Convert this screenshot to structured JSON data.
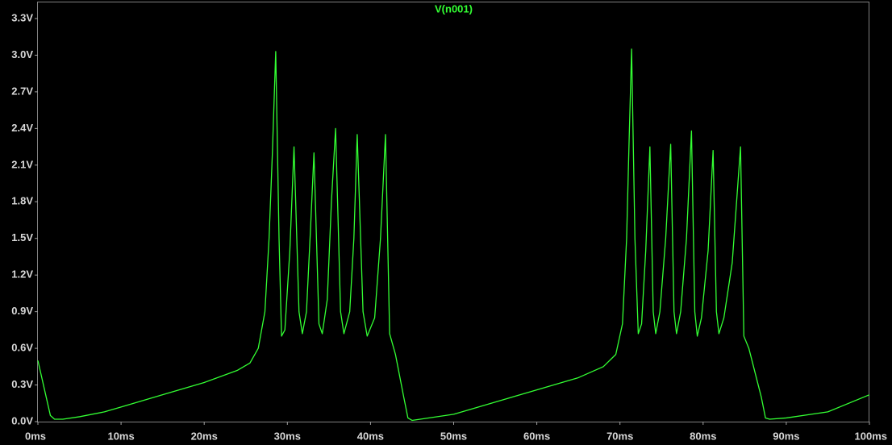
{
  "chart_data": {
    "type": "line",
    "series": [
      {
        "name": "V(n001)",
        "color": "#33ff33",
        "x": [
          0,
          1,
          1.5,
          2,
          3,
          5,
          8,
          10,
          15,
          20,
          24,
          25.5,
          26.5,
          27.3,
          27.8,
          28.2,
          28.6,
          29.0,
          29.3,
          29.7,
          30.3,
          30.8,
          31.4,
          31.8,
          32.3,
          32.8,
          33.2,
          33.8,
          34.2,
          34.8,
          35.3,
          35.8,
          36.4,
          36.8,
          37.5,
          38.0,
          38.4,
          39.1,
          39.6,
          40.5,
          41.2,
          41.8,
          42.3,
          43.0,
          44.0,
          44.5,
          45,
          50,
          55,
          60,
          65,
          68,
          69.5,
          70.3,
          70.8,
          71.1,
          71.4,
          71.8,
          72.2,
          72.6,
          73.1,
          73.6,
          74.0,
          74.3,
          74.8,
          75.5,
          76.1,
          76.5,
          76.8,
          77.3,
          78.0,
          78.6,
          79.0,
          79.3,
          79.8,
          80.6,
          81.2,
          81.6,
          81.9,
          82.5,
          83.5,
          84.5,
          84.9,
          85.5,
          87.0,
          87.5,
          88,
          90,
          95,
          100
        ],
        "values": [
          0.5,
          0.2,
          0.05,
          0.02,
          0.02,
          0.04,
          0.08,
          0.12,
          0.22,
          0.32,
          0.42,
          0.48,
          0.6,
          0.9,
          1.5,
          2.2,
          3.03,
          1.5,
          0.7,
          0.75,
          1.4,
          2.25,
          0.9,
          0.72,
          0.9,
          1.6,
          2.2,
          0.8,
          0.72,
          1.0,
          1.8,
          2.4,
          0.9,
          0.72,
          0.9,
          1.5,
          2.35,
          0.9,
          0.7,
          0.85,
          1.5,
          2.35,
          0.72,
          0.55,
          0.2,
          0.03,
          0.01,
          0.06,
          0.16,
          0.26,
          0.36,
          0.45,
          0.55,
          0.8,
          1.5,
          2.3,
          3.05,
          1.5,
          0.72,
          0.8,
          1.4,
          2.25,
          0.9,
          0.72,
          0.9,
          1.5,
          2.27,
          0.9,
          0.72,
          0.9,
          1.5,
          2.38,
          0.9,
          0.7,
          0.85,
          1.4,
          2.22,
          0.9,
          0.72,
          0.85,
          1.3,
          2.25,
          0.7,
          0.6,
          0.2,
          0.03,
          0.02,
          0.03,
          0.08,
          0.22
        ]
      }
    ],
    "xlim": [
      0,
      100
    ],
    "xticks": [
      {
        "value": 0,
        "label": "0ms"
      },
      {
        "value": 10,
        "label": "10ms"
      },
      {
        "value": 20,
        "label": "20ms"
      },
      {
        "value": 30,
        "label": "30ms"
      },
      {
        "value": 40,
        "label": "40ms"
      },
      {
        "value": 50,
        "label": "50ms"
      },
      {
        "value": 60,
        "label": "60ms"
      },
      {
        "value": 70,
        "label": "70ms"
      },
      {
        "value": 80,
        "label": "80ms"
      },
      {
        "value": 90,
        "label": "90ms"
      },
      {
        "value": 100,
        "label": "100ms"
      }
    ],
    "ylim": [
      0,
      3.3
    ],
    "yticks": [
      {
        "value": 0,
        "label": "0.0V"
      },
      {
        "value": 0.3,
        "label": "0.3V"
      },
      {
        "value": 0.6,
        "label": "0.6V"
      },
      {
        "value": 0.9,
        "label": "0.9V"
      },
      {
        "value": 1.2,
        "label": "1.2V"
      },
      {
        "value": 1.5,
        "label": "1.5V"
      },
      {
        "value": 1.8,
        "label": "1.8V"
      },
      {
        "value": 2.1,
        "label": "2.1V"
      },
      {
        "value": 2.4,
        "label": "2.4V"
      },
      {
        "value": 2.7,
        "label": "2.7V"
      },
      {
        "value": 3.0,
        "label": "3.0V"
      },
      {
        "value": 3.3,
        "label": "3.3V"
      }
    ]
  }
}
